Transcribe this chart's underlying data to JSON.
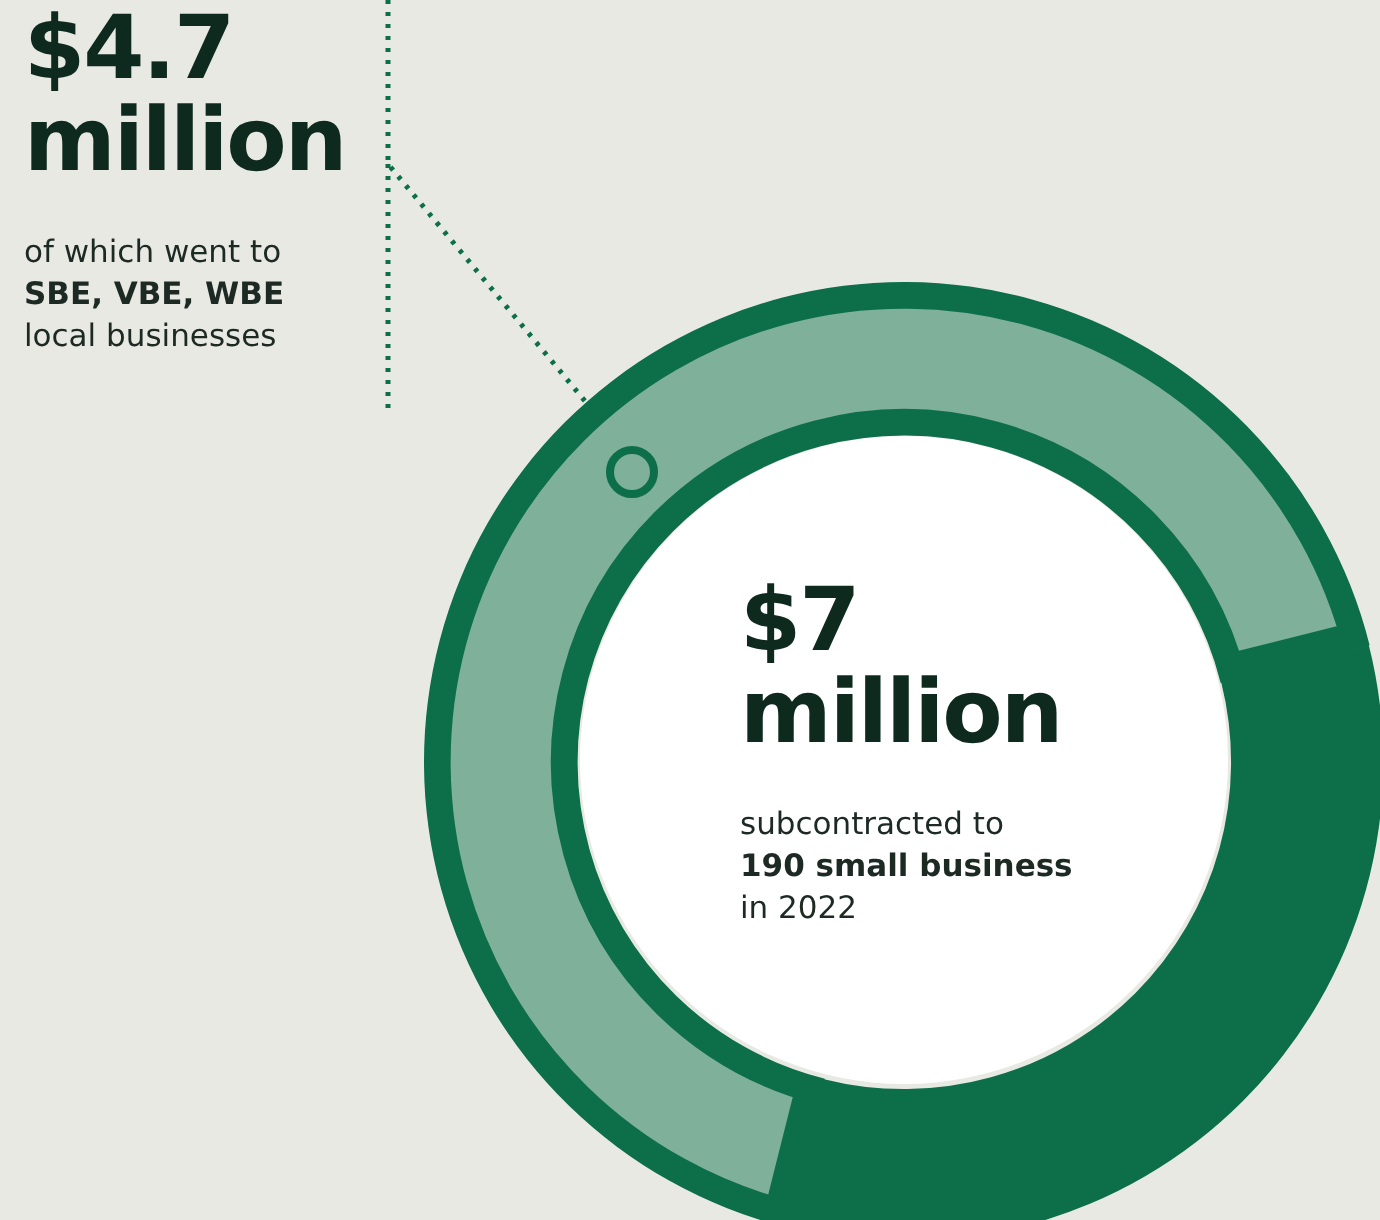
{
  "chart_data": {
    "type": "donut",
    "categories": [
      null,
      null
    ],
    "values": [
      4.7,
      2.3
    ],
    "colors": [
      "#7fb09a",
      "#0d6e4a"
    ],
    "value_labels": [
      "$4.7 million",
      null
    ],
    "annotations": [
      "of which went to",
      "SBE, VBE, WBE",
      "local businesses",
      "$7 million",
      "subcontracted to",
      "190 small business",
      "in 2022"
    ]
  }
}
